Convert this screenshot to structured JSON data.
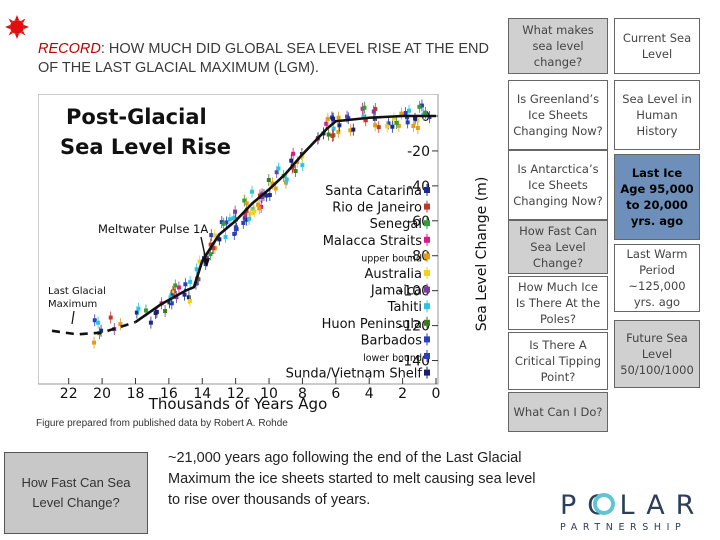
{
  "headline": {
    "prefix": "RECORD",
    "text": ": HOW MUCH DID GLOBAL SEA LEVEL RISE AT THE END OF THE LAST GLACIAL MAXIMUM (LGM)."
  },
  "credit": "Figure prepared from published data by  Robert A. Rohde",
  "bottom_box": "How Fast Can Sea Level Change?",
  "summary": "~21,000 years ago following the end of the Last Glacial Maximum the ice sheets started to melt causing sea level to rise over thousands of years.",
  "left_column": [
    "What makes sea level change?",
    "Is Greenland’s Ice Sheets Changing Now?",
    "Is Antarctica’s Ice Sheets Changing Now?",
    "How Fast Can Sea Level Change?",
    "How Much Ice Is There At the Poles?",
    "Is There A Critical Tipping Point?",
    "What Can I Do?"
  ],
  "right_column": [
    "Current Sea Level",
    "Sea Level in Human History",
    "Last Ice Age 95,000 to 20,000  yrs. ago",
    "Last Warm Period ~125,000 yrs. ago",
    "Future Sea Level 50/100/1000"
  ],
  "logo": {
    "big": "POLAR",
    "small": "PARTNERSHIP"
  },
  "colors": {
    "highlight": "#6e8fb9",
    "record": "#c00000",
    "box_gray": "#d0d0d0"
  },
  "chart_data": {
    "type": "scatter",
    "title": "Post-Glacial Sea Level Rise",
    "xlabel": "Thousands of Years Ago",
    "ylabel": "Sea Level Change (m)",
    "xlim": [
      23,
      0
    ],
    "ylim": [
      -150,
      5
    ],
    "x_ticks": [
      22,
      20,
      18,
      16,
      14,
      12,
      10,
      8,
      6,
      4,
      2,
      0
    ],
    "y_ticks": [
      0,
      -20,
      -40,
      -60,
      -80,
      -100,
      -120,
      -140
    ],
    "annotations": [
      "Meltwater Pulse 1A",
      "Last Glacial Maximum"
    ],
    "curve": [
      [
        23,
        -122
      ],
      [
        21,
        -125
      ],
      [
        19.5,
        -122
      ],
      [
        18,
        -118
      ],
      [
        16.5,
        -108
      ],
      [
        15,
        -100
      ],
      [
        14.5,
        -98
      ],
      [
        14,
        -83
      ],
      [
        13,
        -68
      ],
      [
        12,
        -60
      ],
      [
        11,
        -50
      ],
      [
        10,
        -42
      ],
      [
        9,
        -33
      ],
      [
        8,
        -22
      ],
      [
        7,
        -12
      ],
      [
        6.5,
        -7
      ],
      [
        6,
        -3
      ],
      [
        4,
        -1
      ],
      [
        2,
        0
      ],
      [
        0,
        0
      ]
    ],
    "series": [
      {
        "name": "Santa Catarina",
        "color": "#1c2a8c",
        "symbol": "diamond"
      },
      {
        "name": "Rio de Janeiro",
        "color": "#c03a2b",
        "symbol": "diamond"
      },
      {
        "name": "Senegal",
        "color": "#2f9e3a",
        "symbol": "diamond"
      },
      {
        "name": "Malacca Straits",
        "color": "#d81b8a",
        "symbol": "diamond"
      },
      {
        "name": "upper bound",
        "color": "#e39b1a",
        "symbol": "triangle-down"
      },
      {
        "name": "Australia",
        "color": "#f2d21b",
        "symbol": "square"
      },
      {
        "name": "Jamaica",
        "color": "#7a3b9e",
        "symbol": "triangle"
      },
      {
        "name": "Tahiti",
        "color": "#2cc4e0",
        "symbol": "circle"
      },
      {
        "name": "Huon Peninsula",
        "color": "#3d7c1c",
        "symbol": "circle"
      },
      {
        "name": "Barbados",
        "color": "#2b3fb8",
        "symbol": "plus"
      },
      {
        "name": "lower bound",
        "color": "#2b3fb8",
        "symbol": "triangle-up"
      },
      {
        "name": "Sunda/Vietnam Shelf",
        "color": "#1b1f6e",
        "symbol": "triangle"
      }
    ]
  }
}
